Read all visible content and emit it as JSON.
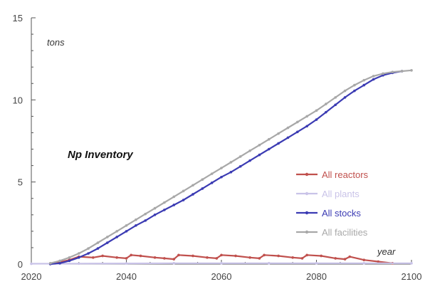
{
  "chart_data": {
    "type": "line",
    "title": "Np Inventory",
    "ylabel": "tons",
    "xlabel": "year",
    "xlim": [
      2020,
      2100
    ],
    "ylim": [
      0,
      15
    ],
    "xticks": [
      2020,
      2040,
      2060,
      2080,
      2100
    ],
    "yticks": [
      0,
      5,
      10,
      15
    ],
    "grid": false,
    "legend_position": "right",
    "series": [
      {
        "name": "All reactors",
        "color": "#c0504d",
        "x": [
          2025,
          2028,
          2030,
          2033,
          2035,
          2038,
          2040,
          2041,
          2043,
          2046,
          2048,
          2050,
          2051,
          2054,
          2057,
          2059,
          2060,
          2063,
          2066,
          2068,
          2069,
          2072,
          2075,
          2077,
          2078,
          2081,
          2084,
          2086,
          2087,
          2090,
          2093,
          2096
        ],
        "y": [
          0.05,
          0.25,
          0.45,
          0.4,
          0.5,
          0.4,
          0.35,
          0.55,
          0.5,
          0.4,
          0.35,
          0.3,
          0.55,
          0.5,
          0.4,
          0.35,
          0.55,
          0.5,
          0.4,
          0.35,
          0.55,
          0.5,
          0.4,
          0.35,
          0.55,
          0.5,
          0.35,
          0.3,
          0.45,
          0.25,
          0.15,
          0.05
        ]
      },
      {
        "name": "All plants",
        "color": "#c9c3e8",
        "x": [
          2020,
          2030,
          2040,
          2050,
          2060,
          2070,
          2080,
          2090,
          2100
        ],
        "y": [
          0.02,
          0.03,
          0.04,
          0.05,
          0.05,
          0.05,
          0.05,
          0.05,
          0.05
        ]
      },
      {
        "name": "All stocks",
        "color": "#3b3bb3",
        "x": [
          2024,
          2026,
          2028,
          2030,
          2032,
          2034,
          2036,
          2038,
          2040,
          2042,
          2044,
          2046,
          2048,
          2050,
          2052,
          2054,
          2056,
          2058,
          2060,
          2062,
          2064,
          2066,
          2068,
          2070,
          2072,
          2074,
          2076,
          2078,
          2080,
          2082,
          2084,
          2086,
          2088,
          2090,
          2092,
          2094,
          2096,
          2098
        ],
        "y": [
          0.0,
          0.05,
          0.2,
          0.4,
          0.65,
          0.95,
          1.3,
          1.65,
          2.0,
          2.35,
          2.65,
          3.0,
          3.3,
          3.6,
          3.9,
          4.25,
          4.6,
          4.95,
          5.3,
          5.6,
          5.95,
          6.3,
          6.65,
          7.0,
          7.35,
          7.7,
          8.05,
          8.4,
          8.8,
          9.25,
          9.7,
          10.15,
          10.55,
          10.9,
          11.25,
          11.5,
          11.65,
          11.75
        ]
      },
      {
        "name": "All facilities",
        "color": "#a8a8a8",
        "x": [
          2024,
          2026,
          2028,
          2030,
          2032,
          2034,
          2036,
          2038,
          2040,
          2042,
          2044,
          2046,
          2048,
          2050,
          2052,
          2054,
          2056,
          2058,
          2060,
          2062,
          2064,
          2066,
          2068,
          2070,
          2072,
          2074,
          2076,
          2078,
          2080,
          2082,
          2084,
          2086,
          2088,
          2090,
          2092,
          2094,
          2096,
          2098,
          2100
        ],
        "y": [
          0.05,
          0.2,
          0.4,
          0.65,
          0.95,
          1.3,
          1.65,
          2.0,
          2.35,
          2.7,
          3.05,
          3.4,
          3.75,
          4.1,
          4.45,
          4.8,
          5.15,
          5.5,
          5.85,
          6.2,
          6.55,
          6.9,
          7.25,
          7.6,
          7.95,
          8.3,
          8.65,
          9.0,
          9.35,
          9.75,
          10.15,
          10.55,
          10.9,
          11.2,
          11.45,
          11.6,
          11.7,
          11.75,
          11.8
        ]
      }
    ]
  }
}
